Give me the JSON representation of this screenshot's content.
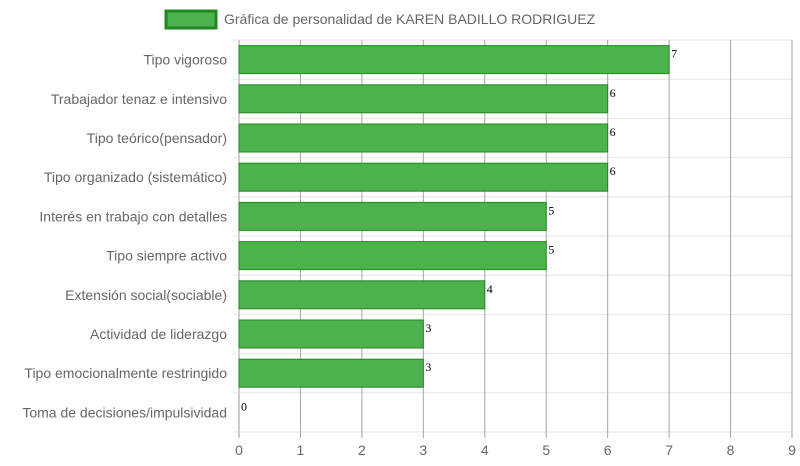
{
  "chart_data": {
    "type": "bar",
    "orientation": "horizontal",
    "categories": [
      "Tipo vigoroso",
      "Trabajador tenaz e intensivo",
      "Tipo teórico(pensador)",
      "Tipo organizado (sistemático)",
      "Interés en trabajo con detalles",
      "Tipo siempre activo",
      "Extensión social(sociable)",
      "Actividad de liderazgo",
      "Tipo emocionalmente restringido",
      "Toma de decisiones/impulsividad"
    ],
    "series": [
      {
        "name": "Gráfica de personalidad de KAREN BADILLO RODRIGUEZ",
        "values": [
          7,
          6,
          6,
          6,
          5,
          5,
          4,
          3,
          3,
          0
        ],
        "color": "#4db24d",
        "border_color": "#1f8a1f"
      }
    ],
    "xlim": [
      0,
      9
    ],
    "x_ticks": [
      "0",
      "1",
      "2",
      "3",
      "4",
      "5",
      "6",
      "7",
      "8",
      "9"
    ],
    "grid": true,
    "legend_position": "top",
    "data_labels": true
  }
}
